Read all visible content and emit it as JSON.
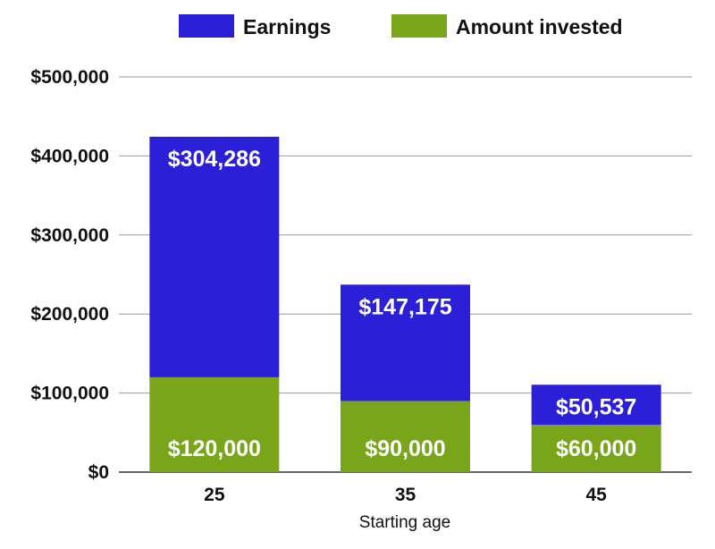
{
  "chart_data": {
    "type": "bar",
    "stacked": true,
    "title": "",
    "xlabel": "Starting age",
    "ylabel": "",
    "categories": [
      "25",
      "35",
      "45"
    ],
    "series": [
      {
        "name": "Amount invested",
        "values": [
          120000,
          90000,
          60000
        ],
        "labels": [
          "$120,000",
          "$90,000",
          "$60,000"
        ],
        "color": "#78a51a"
      },
      {
        "name": "Earnings",
        "values": [
          304286,
          147175,
          50537
        ],
        "labels": [
          "$304,286",
          "$147,175",
          "$50,537"
        ],
        "color": "#2b1fd8"
      }
    ],
    "ylim": [
      0,
      500000
    ],
    "yticks": [
      0,
      100000,
      200000,
      300000,
      400000,
      500000
    ],
    "ytick_labels": [
      "$0",
      "$100,000",
      "$200,000",
      "$300,000",
      "$400,000",
      "$500,000"
    ],
    "grid": true,
    "legend": {
      "placement": "top",
      "order": [
        "Earnings",
        "Amount invested"
      ]
    }
  }
}
